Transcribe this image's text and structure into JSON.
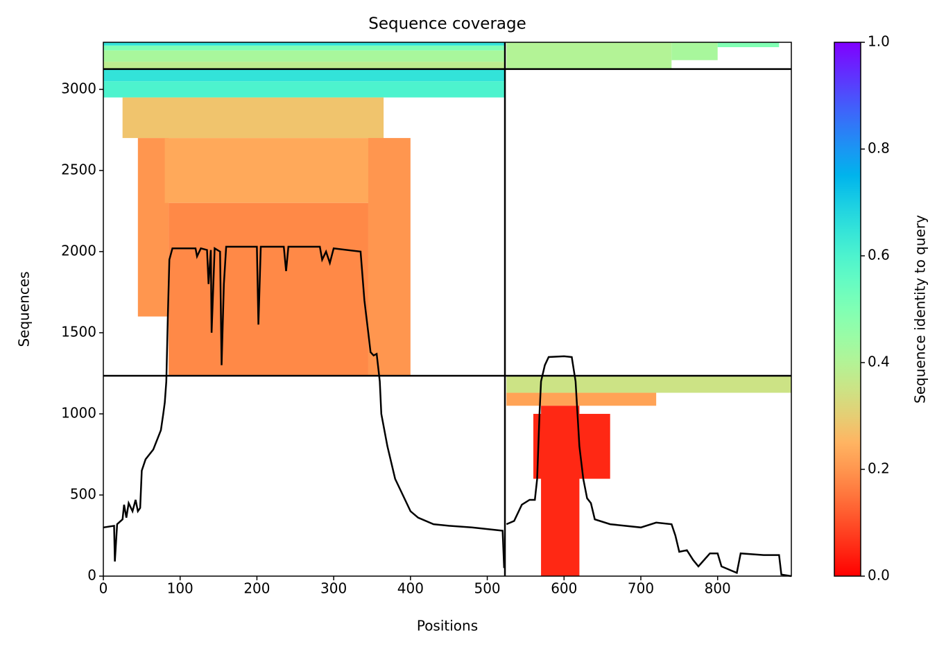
{
  "chart_data": {
    "type": "coverage",
    "title": "Sequence coverage",
    "xlabel": "Positions",
    "ylabel": "Sequences",
    "colorbar_label": "Sequence identity to query",
    "xlim": [
      0,
      896
    ],
    "ylim": [
      0,
      3290
    ],
    "xticks": [
      0,
      100,
      200,
      300,
      400,
      500,
      600,
      700,
      800
    ],
    "yticks": [
      0,
      500,
      1000,
      1500,
      2000,
      2500,
      3000
    ],
    "clim": [
      0,
      1
    ],
    "cticks": [
      {
        "value": 0,
        "label": "0.0"
      },
      {
        "value": 0.2,
        "label": "0.2"
      },
      {
        "value": 0.4,
        "label": "0.4"
      },
      {
        "value": 0.6,
        "label": "0.6"
      },
      {
        "value": 0.8,
        "label": "0.8"
      },
      {
        "value": 1,
        "label": "1.0"
      }
    ],
    "colormap": "rainbow_r",
    "dividers_x": [
      523
    ],
    "dividers_y": [
      1235,
      3125
    ],
    "blocks": [
      {
        "start": 0,
        "end": 523,
        "seq_from": 3125,
        "seq_to": 3170,
        "identity": 0.38
      },
      {
        "start": 0,
        "end": 523,
        "seq_from": 3170,
        "seq_to": 3240,
        "identity": 0.42
      },
      {
        "start": 0,
        "end": 523,
        "seq_from": 3240,
        "seq_to": 3270,
        "identity": 0.5
      },
      {
        "start": 0,
        "end": 523,
        "seq_from": 3270,
        "seq_to": 3290,
        "identity": 0.65
      },
      {
        "start": 525,
        "end": 740,
        "seq_from": 3125,
        "seq_to": 3290,
        "identity": 0.4
      },
      {
        "start": 740,
        "end": 800,
        "seq_from": 3180,
        "seq_to": 3290,
        "identity": 0.42
      },
      {
        "start": 800,
        "end": 880,
        "seq_from": 3260,
        "seq_to": 3290,
        "identity": 0.5
      },
      {
        "start": 0,
        "end": 523,
        "seq_from": 2950,
        "seq_to": 3050,
        "identity": 0.6
      },
      {
        "start": 0,
        "end": 523,
        "seq_from": 3050,
        "seq_to": 3125,
        "identity": 0.65
      },
      {
        "start": 25,
        "end": 365,
        "seq_from": 2700,
        "seq_to": 2950,
        "identity": 0.28
      },
      {
        "start": 45,
        "end": 85,
        "seq_from": 1600,
        "seq_to": 2700,
        "identity": 0.2
      },
      {
        "start": 80,
        "end": 365,
        "seq_from": 2300,
        "seq_to": 2700,
        "identity": 0.23
      },
      {
        "start": 85,
        "end": 345,
        "seq_from": 1235,
        "seq_to": 2300,
        "identity": 0.18
      },
      {
        "start": 345,
        "end": 400,
        "seq_from": 1235,
        "seq_to": 2700,
        "identity": 0.2
      },
      {
        "start": 525,
        "end": 896,
        "seq_from": 1130,
        "seq_to": 1235,
        "identity": 0.35
      },
      {
        "start": 525,
        "end": 720,
        "seq_from": 1050,
        "seq_to": 1130,
        "identity": 0.22
      },
      {
        "start": 560,
        "end": 660,
        "seq_from": 600,
        "seq_to": 1000,
        "identity": 0.05
      },
      {
        "start": 570,
        "end": 620,
        "seq_from": 0,
        "seq_to": 1050,
        "identity": 0.05
      }
    ],
    "coverage": {
      "color": "#000000",
      "x": [
        0,
        14,
        15,
        18,
        25,
        27,
        30,
        33,
        38,
        42,
        45,
        48,
        50,
        55,
        65,
        70,
        75,
        78,
        80,
        82,
        84,
        86,
        90,
        120,
        122,
        127,
        135,
        137,
        140,
        141,
        145,
        152,
        154,
        157,
        160,
        200,
        202,
        205,
        235,
        238,
        241,
        282,
        285,
        290,
        295,
        300,
        335,
        340,
        345,
        348,
        352,
        356,
        360,
        362,
        370,
        380,
        390,
        400,
        410,
        430,
        450,
        480,
        500,
        520,
        522,
        523,
        525,
        535,
        545,
        555,
        562,
        565,
        568,
        570,
        575,
        580,
        600,
        610,
        615,
        620,
        625,
        630,
        635,
        640,
        660,
        700,
        720,
        740,
        745,
        750,
        760,
        768,
        775,
        790,
        800,
        805,
        820,
        825,
        830,
        860,
        880,
        883,
        896
      ],
      "values": [
        300,
        310,
        90,
        320,
        350,
        440,
        360,
        450,
        400,
        470,
        400,
        420,
        650,
        720,
        780,
        840,
        900,
        1000,
        1070,
        1200,
        1600,
        1950,
        2020,
        2020,
        1970,
        2020,
        2010,
        1800,
        2010,
        1500,
        2020,
        2000,
        1300,
        1800,
        2030,
        2030,
        1550,
        2030,
        2030,
        1880,
        2030,
        2030,
        1950,
        2000,
        1930,
        2020,
        2000,
        1700,
        1500,
        1380,
        1360,
        1370,
        1200,
        1000,
        800,
        600,
        500,
        400,
        360,
        320,
        310,
        300,
        290,
        280,
        50,
        null,
        320,
        340,
        440,
        470,
        470,
        600,
        1000,
        1200,
        1300,
        1350,
        1355,
        1350,
        1200,
        800,
        600,
        480,
        450,
        350,
        320,
        300,
        330,
        320,
        250,
        150,
        160,
        100,
        60,
        140,
        140,
        60,
        30,
        20,
        140,
        130,
        130,
        10,
        0
      ]
    }
  }
}
